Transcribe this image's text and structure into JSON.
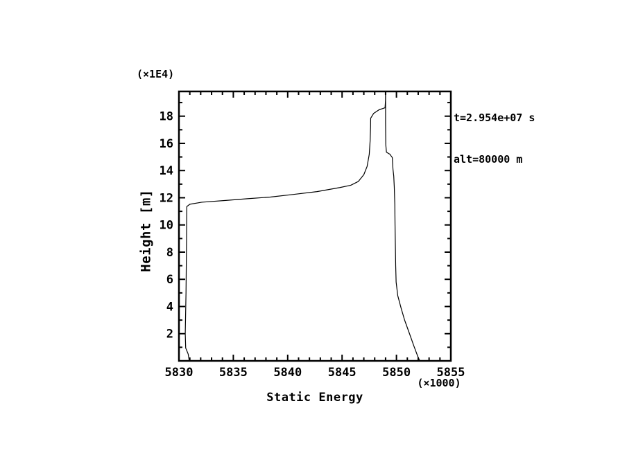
{
  "figure": {
    "background_color": "#ffffff",
    "ink_color": "#000000"
  },
  "chart_data": {
    "type": "line",
    "title": "",
    "xlabel": "Static Energy",
    "ylabel": "Height [m]",
    "x_multiplier_note": "(×1000)",
    "y_multiplier_note": "(×1E4)",
    "xlim": [
      5830,
      5855
    ],
    "ylim": [
      0,
      19.82
    ],
    "xticks": [
      5830,
      5835,
      5840,
      5845,
      5850,
      5855
    ],
    "xtick_labels": [
      "5830",
      "5835",
      "5840",
      "5845",
      "5850",
      "5855"
    ],
    "yticks": [
      2,
      4,
      6,
      8,
      10,
      12,
      14,
      16,
      18
    ],
    "ytick_labels": [
      "2",
      "4",
      "6",
      "8",
      "10",
      "12",
      "14",
      "16",
      "18"
    ],
    "minor_x_step": 1,
    "minor_y_step": 1,
    "grid": false,
    "legend": "none",
    "annotations": [
      "t=2.954e+07 s",
      "alt=80000 m"
    ],
    "series": [
      {
        "name": "profile-lower-branch",
        "color": "#000000",
        "points": [
          [
            5830.95,
            0.0
          ],
          [
            5830.85,
            0.5
          ],
          [
            5830.62,
            0.95
          ],
          [
            5830.58,
            2.0
          ],
          [
            5830.65,
            5.0
          ],
          [
            5830.7,
            9.0
          ],
          [
            5830.72,
            11.35
          ],
          [
            5831.0,
            11.52
          ],
          [
            5832.1,
            11.67
          ],
          [
            5834.3,
            11.8
          ],
          [
            5836.3,
            11.93
          ],
          [
            5838.4,
            12.05
          ],
          [
            5840.6,
            12.25
          ],
          [
            5842.7,
            12.45
          ],
          [
            5844.8,
            12.75
          ],
          [
            5845.8,
            12.92
          ],
          [
            5846.5,
            13.2
          ],
          [
            5847.0,
            13.7
          ],
          [
            5847.3,
            14.3
          ],
          [
            5847.5,
            15.2
          ],
          [
            5847.58,
            16.2
          ],
          [
            5847.62,
            17.2
          ],
          [
            5847.63,
            17.85
          ],
          [
            5847.9,
            18.2
          ],
          [
            5848.4,
            18.47
          ],
          [
            5848.95,
            18.62
          ],
          [
            5849.0,
            19.2
          ],
          [
            5849.0,
            19.82
          ]
        ]
      },
      {
        "name": "profile-upper-branch",
        "color": "#000000",
        "points": [
          [
            5852.15,
            0.0
          ],
          [
            5851.95,
            0.35
          ],
          [
            5851.6,
            1.1
          ],
          [
            5851.2,
            2.0
          ],
          [
            5850.75,
            3.0
          ],
          [
            5850.42,
            3.9
          ],
          [
            5850.12,
            4.8
          ],
          [
            5849.97,
            5.8
          ],
          [
            5849.93,
            7.0
          ],
          [
            5849.9,
            8.5
          ],
          [
            5849.87,
            10.0
          ],
          [
            5849.85,
            11.5
          ],
          [
            5849.8,
            12.8
          ],
          [
            5849.75,
            13.6
          ],
          [
            5849.68,
            14.1
          ],
          [
            5849.62,
            14.95
          ],
          [
            5849.4,
            15.2
          ],
          [
            5849.08,
            15.35
          ],
          [
            5849.02,
            15.9
          ],
          [
            5849.0,
            17.5
          ],
          [
            5849.0,
            19.82
          ]
        ]
      }
    ]
  }
}
